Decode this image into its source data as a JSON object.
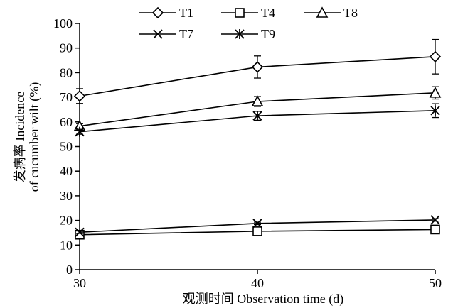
{
  "chart_data": {
    "type": "line",
    "x": [
      30,
      40,
      50
    ],
    "xlabel": "观测时间 Observation time (d)",
    "ylabel_line1": "发病率 Incidence",
    "ylabel_line2": "of cucumber wilt (%)",
    "ylim": [
      0,
      100
    ],
    "yticks": [
      0,
      10,
      20,
      30,
      40,
      50,
      60,
      70,
      80,
      90,
      100
    ],
    "xticks": [
      30,
      40,
      50
    ],
    "grid": false,
    "legend_position": "top",
    "series": [
      {
        "name": "T1",
        "marker": "diamond",
        "values": [
          70.5,
          82.3,
          86.5
        ],
        "errors": [
          3.0,
          4.5,
          7.0
        ]
      },
      {
        "name": "T4",
        "marker": "square",
        "values": [
          14.2,
          15.6,
          16.3
        ],
        "errors": [
          0.8,
          0.8,
          1.0
        ]
      },
      {
        "name": "T8",
        "marker": "triangle",
        "values": [
          58.3,
          68.3,
          71.8
        ],
        "errors": [
          1.0,
          2.0,
          2.5
        ]
      },
      {
        "name": "T7",
        "marker": "x",
        "values": [
          15.2,
          18.8,
          20.2
        ],
        "errors": [
          0.5,
          0.5,
          0.5
        ]
      },
      {
        "name": "T9",
        "marker": "star",
        "values": [
          56.0,
          62.5,
          64.6
        ],
        "errors": [
          1.0,
          1.8,
          2.8
        ]
      }
    ]
  }
}
